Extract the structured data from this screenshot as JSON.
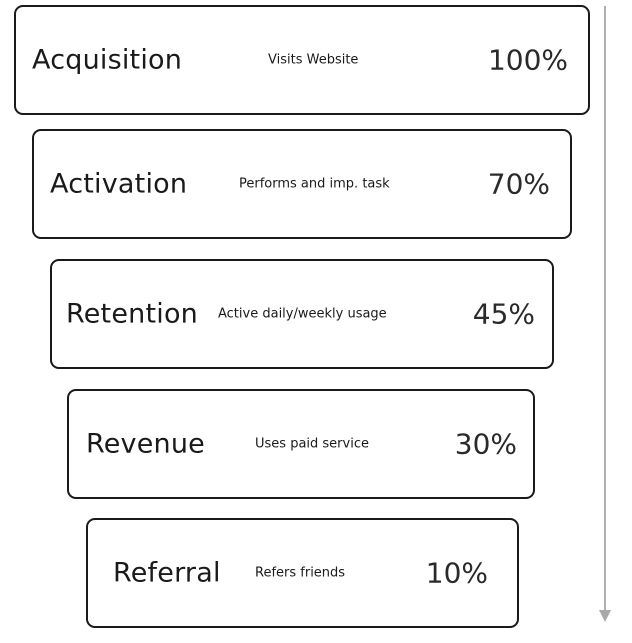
{
  "funnel": {
    "stages": [
      {
        "name": "Acquisition",
        "description": "Visits Website",
        "percent": "100%",
        "value": 100
      },
      {
        "name": "Activation",
        "description": "Performs and imp. task",
        "percent": "70%",
        "value": 70
      },
      {
        "name": "Retention",
        "description": "Active daily/weekly usage",
        "percent": "45%",
        "value": 45
      },
      {
        "name": "Revenue",
        "description": "Uses paid service",
        "percent": "30%",
        "value": 30
      },
      {
        "name": "Referral",
        "description": "Refers friends",
        "percent": "10%",
        "value": 10
      }
    ]
  },
  "colors": {
    "border": "#1a1a1a",
    "text": "#1a1a1a",
    "arrow": "#b0b0b0",
    "background": "#ffffff"
  }
}
